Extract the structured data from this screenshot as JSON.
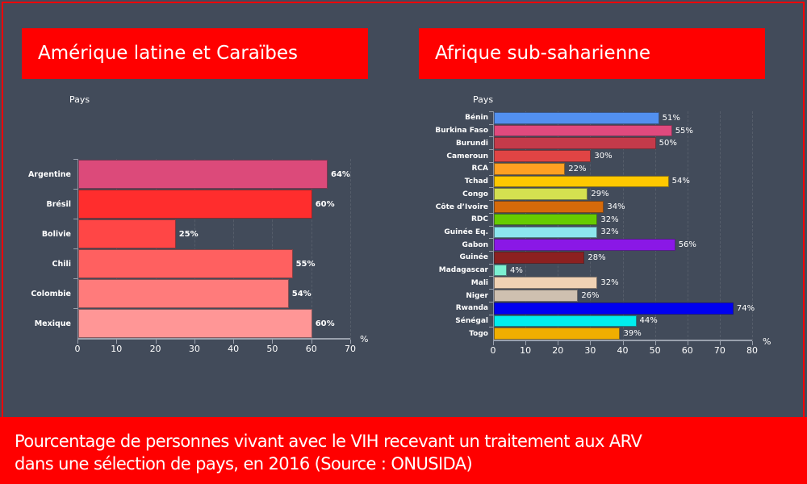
{
  "left_panel": {
    "title": "Amérique latine et Caraïbes",
    "y_axis_title": "Pays",
    "x_unit": "%"
  },
  "right_panel": {
    "title": "Afrique sub-saharienne",
    "y_axis_title": "Pays",
    "x_unit": "%"
  },
  "caption": {
    "line1": "Pourcentage de personnes vivant avec le VIH recevant un traitement aux ARV",
    "line2": "dans une sélection de pays, en 2016 (Source : ONUSIDA)"
  },
  "colors": {
    "background": "#424b5a",
    "accent_red": "#ff0000"
  },
  "chart_data": [
    {
      "type": "bar",
      "orientation": "horizontal",
      "title": "Amérique latine et Caraïbes",
      "xlabel": "%",
      "ylabel": "Pays",
      "xlim": [
        0,
        70
      ],
      "xticks": [
        0,
        10,
        20,
        30,
        40,
        50,
        60,
        70
      ],
      "grid": true,
      "categories": [
        "Argentine",
        "Brésil",
        "Bolivie",
        "Chili",
        "Colombie",
        "Mexique"
      ],
      "values": [
        64,
        60,
        25,
        55,
        54,
        60
      ],
      "value_labels": [
        "64%",
        "60%",
        "25%",
        "55%",
        "54%",
        "60%"
      ],
      "colors": [
        "#dc4a7a",
        "#ff2d2d",
        "#ff4646",
        "#ff6060",
        "#ff7b7b",
        "#ff9696"
      ]
    },
    {
      "type": "bar",
      "orientation": "horizontal",
      "title": "Afrique sub-saharienne",
      "xlabel": "%",
      "ylabel": "Pays",
      "xlim": [
        0,
        80
      ],
      "xticks": [
        0,
        10,
        20,
        30,
        40,
        50,
        60,
        70,
        80
      ],
      "grid": true,
      "categories": [
        "Bénin",
        "Burkina Faso",
        "Burundi",
        "Cameroun",
        "RCA",
        "Tchad",
        "Congo",
        "Côte d’Ivoire",
        "RDC",
        "Guinée Eq.",
        "Gabon",
        "Guinée",
        "Madagascar",
        "Mali",
        "Niger",
        "Rwanda",
        "Sénégal",
        "Togo"
      ],
      "values": [
        51,
        55,
        50,
        30,
        22,
        54,
        29,
        34,
        32,
        32,
        56,
        28,
        4,
        32,
        26,
        74,
        44,
        39
      ],
      "value_labels": [
        "51%",
        "55%",
        "50%",
        "30%",
        "22%",
        "54%",
        "29%",
        "34%",
        "32%",
        "32%",
        "56%",
        "28%",
        "4%",
        "32%",
        "26%",
        "74%",
        "44%",
        "39%"
      ],
      "colors": [
        "#5290f0",
        "#e04a7e",
        "#c43a4a",
        "#e04444",
        "#ffa022",
        "#ffc800",
        "#d4e050",
        "#d66a0a",
        "#66cc00",
        "#8ce6ee",
        "#8a18e6",
        "#8c2020",
        "#7cf0d2",
        "#f0d2b4",
        "#cfc0b0",
        "#0000f0",
        "#00eeee",
        "#f0ae00"
      ]
    }
  ]
}
